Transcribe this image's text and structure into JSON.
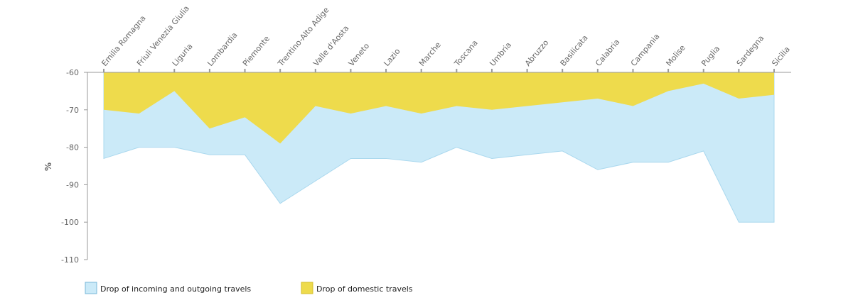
{
  "chart_data": {
    "type": "area",
    "y_label": "%",
    "categories": [
      "Emilia Romagna",
      "Friuli Venezia Giulia",
      "Liguria",
      "Lombardia",
      "Piemonte",
      "Trentino-Alto Adige",
      "Valle d'Aosta",
      "Veneto",
      "Lazio",
      "Marche",
      "Toscana",
      "Umbria",
      "Abruzzo",
      "Basilicata",
      "Calabria",
      "Campania",
      "Molise",
      "Puglia",
      "Sardegna",
      "Sicilia"
    ],
    "series": [
      {
        "name": "Drop of incoming and outgoing travels",
        "color": "#cbeaf8",
        "values": [
          -83,
          -80,
          -80,
          -82,
          -82,
          -95,
          -89,
          -83,
          -83,
          -84,
          -80,
          -83,
          -82,
          -81,
          -86,
          -84,
          -84,
          -81,
          -100,
          -100
        ]
      },
      {
        "name": "Drop of domestic travels",
        "color": "#eedb4c",
        "values": [
          -70,
          -71,
          -65,
          -75,
          -72,
          -79,
          -69,
          -71,
          -69,
          -71,
          -69,
          -70,
          -69,
          -68,
          -67,
          -69,
          -65,
          -63,
          -67,
          -66
        ]
      }
    ],
    "ylim": [
      -60,
      -110
    ],
    "yticks": [
      -60,
      -70,
      -80,
      -90,
      -100,
      -110
    ]
  }
}
